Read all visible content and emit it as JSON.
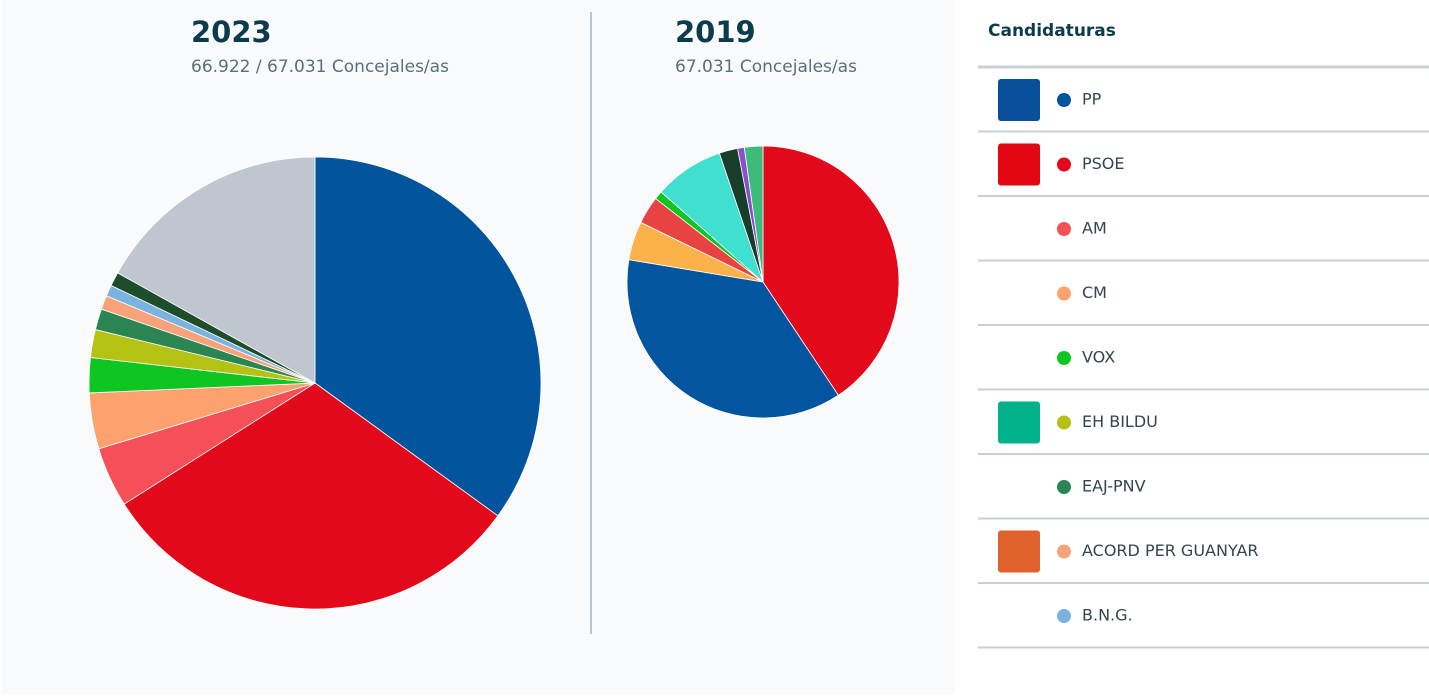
{
  "chart_data": [
    {
      "type": "pie",
      "title": "2023",
      "subtitle": "66.922 / 67.031 Concejales/as",
      "legend_title": "Candidaturas",
      "categories": [
        "PP",
        "PSOE",
        "AM",
        "CM",
        "VOX",
        "EH BILDU",
        "EAJ-PNV",
        "ACORD PER GUANYAR",
        "B.N.G.",
        null,
        null
      ],
      "values": [
        35,
        31,
        4.3,
        4,
        2.5,
        2,
        1.5,
        1,
        0.8,
        1,
        16.9
      ],
      "colors": [
        "#02549d",
        "#e20a1a",
        "#f55058",
        "#fda26e",
        "#0dc622",
        "#b4c213",
        "#2a8552",
        "#f7a278",
        "#7ab2e0",
        "#1e4d2b",
        "#c0c6cf"
      ]
    },
    {
      "type": "pie",
      "title": "2019",
      "subtitle": "67.031 Concejales/as",
      "values": [
        40.7,
        37,
        4.6,
        3.3,
        1,
        8.3,
        2.2,
        0.8,
        2.2
      ],
      "colors": [
        "#e20a1a",
        "#0355a0",
        "#fdb14b",
        "#e94242",
        "#0dc622",
        "#40e0d0",
        "#183d29",
        "#8a4fcf",
        "#3dbb7a"
      ]
    }
  ]
}
